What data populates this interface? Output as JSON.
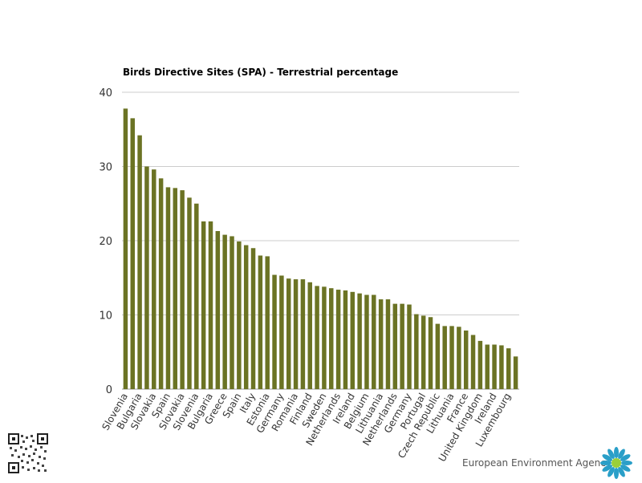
{
  "chart_data": {
    "type": "bar",
    "title": "Birds Directive Sites (SPA) - Terrestrial percentage",
    "xlabel": "",
    "ylabel": "",
    "ylim": [
      0,
      40
    ],
    "yticks": [
      0,
      10,
      20,
      30,
      40
    ],
    "grid": true,
    "bar_color": "#6b7324",
    "x_tick_labels": [
      "Slovenia",
      "Bulgaria",
      "Slovakia",
      "Spain",
      "Slovakia",
      "Slovenia",
      "Bulgaria",
      "Greece",
      "Spain",
      "Italy",
      "Estonia",
      "Germany",
      "Romania",
      "Finland",
      "Sweden",
      "Netherlands",
      "Ireland",
      "Belgium",
      "Lithuania",
      "Netherlands",
      "Germany",
      "Portugal",
      "Czech Republic",
      "Lithuania",
      "France",
      "United Kingdom",
      "Ireland",
      "Luxembourg"
    ],
    "values": [
      37.8,
      36.5,
      34.2,
      30.0,
      29.6,
      28.4,
      27.2,
      27.1,
      26.8,
      25.8,
      25.0,
      22.6,
      22.6,
      21.3,
      20.8,
      20.6,
      19.9,
      19.4,
      19.0,
      18.0,
      17.9,
      15.4,
      15.3,
      14.9,
      14.8,
      14.8,
      14.4,
      13.9,
      13.8,
      13.6,
      13.4,
      13.3,
      13.1,
      12.9,
      12.7,
      12.7,
      12.1,
      12.1,
      11.5,
      11.5,
      11.4,
      10.1,
      9.9,
      9.7,
      8.8,
      8.5,
      8.5,
      8.4,
      7.9,
      7.3,
      6.5,
      6.0,
      6.0,
      5.9,
      5.5,
      4.4
    ]
  },
  "footer": {
    "agency": "European Environment Agency"
  }
}
